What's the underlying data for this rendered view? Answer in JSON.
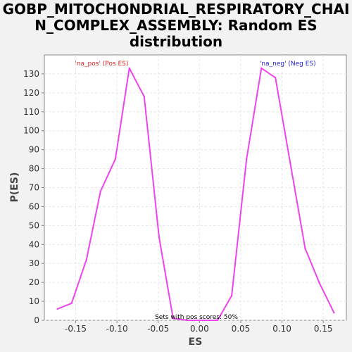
{
  "chart_data": {
    "type": "line",
    "title_lines": [
      "GOBP_MITOCHONDRIAL_RESPIRATORY_CHAI",
      "N_COMPLEX_ASSEMBLY: Random ES",
      "distribution"
    ],
    "xlabel": "ES",
    "ylabel": "P(ES)",
    "xlim": [
      -0.188,
      0.178
    ],
    "ylim": [
      0,
      140
    ],
    "xticks": [
      -0.15,
      -0.1,
      -0.05,
      0.0,
      0.05,
      0.1,
      0.15
    ],
    "xtick_labels": [
      "-0.15",
      "-0.10",
      "-0.05",
      "0.00",
      "0.05",
      "0.10",
      "0.15"
    ],
    "yticks": [
      0,
      10,
      20,
      30,
      40,
      50,
      60,
      70,
      80,
      90,
      100,
      110,
      120,
      130
    ],
    "ytick_labels": [
      "0",
      "10",
      "20",
      "30",
      "40",
      "50",
      "60",
      "70",
      "80",
      "90",
      "100",
      "110",
      "120",
      "130"
    ],
    "grid": true,
    "series": [
      {
        "color": "#ee44ee",
        "x": [
          -0.172,
          -0.155,
          -0.137,
          -0.12,
          -0.102,
          -0.085,
          -0.067,
          -0.049,
          -0.032,
          -0.014,
          0.004,
          0.022,
          0.039,
          0.057,
          0.075,
          0.092,
          0.11,
          0.128,
          0.145,
          0.163
        ],
        "y": [
          6,
          9,
          32,
          68,
          85,
          133,
          118,
          44,
          1,
          0,
          0,
          0,
          13,
          85,
          133,
          128,
          83,
          38,
          20,
          4
        ]
      }
    ],
    "annotations": [
      {
        "text": "'na_pos' (Pos ES)",
        "color": "#dd2222",
        "x": -0.151,
        "y": 134.5
      },
      {
        "text": "'na_neg' (Neg ES)",
        "color": "#2222cc",
        "x": 0.073,
        "y": 134.5
      },
      {
        "text": "Sets with pos scores: 50%",
        "color": "#000000",
        "x": -0.054,
        "y": 0.8
      }
    ]
  }
}
